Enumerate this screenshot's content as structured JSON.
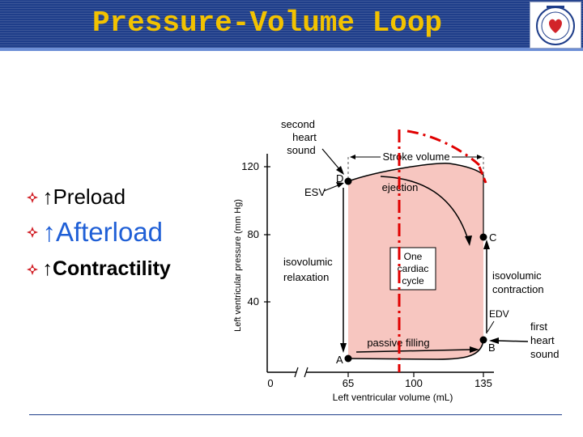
{
  "slide": {
    "title": "Pressure-Volume Loop",
    "bullets": [
      {
        "text": "↑Preload",
        "size": "large"
      },
      {
        "text": "↑Afterload",
        "size": "xlarge"
      },
      {
        "text": "↑Contractility",
        "size": "large"
      }
    ],
    "colors": {
      "header": "#1f3e8a",
      "title": "#f2c200",
      "loop_fill": "#f7c6c0",
      "dashed": "#e00000",
      "bullet_text_afterload": "#1f5fd6"
    }
  },
  "diagram": {
    "y_axis_label": "Left ventricular pressure (mm Hg)",
    "x_axis_label": "Left ventricular volume (mL)",
    "y_ticks": [
      "40",
      "80",
      "120"
    ],
    "x_ticks": [
      "0",
      "65",
      "100",
      "135"
    ],
    "points": {
      "A": "A",
      "B": "B",
      "C": "C",
      "D": "D"
    },
    "labels": {
      "second_heart_sound": [
        "second",
        "heart",
        "sound"
      ],
      "esv": "ESV",
      "stroke_volume": "Stroke volume",
      "ejection": "ejection",
      "isovolumic_relaxation": [
        "isovolumic",
        "relaxation"
      ],
      "one_cardiac_cycle": [
        "One",
        "cardiac",
        "cycle"
      ],
      "isovolumic_contraction": [
        "isovolumic",
        "contraction"
      ],
      "edv": "EDV",
      "first_heart_sound": [
        "first",
        "heart",
        "sound"
      ],
      "passive_filling": "passive filling"
    },
    "icons": [
      "diamond-bullet-icon",
      "society-logo-icon",
      "axis-break-icon"
    ]
  }
}
